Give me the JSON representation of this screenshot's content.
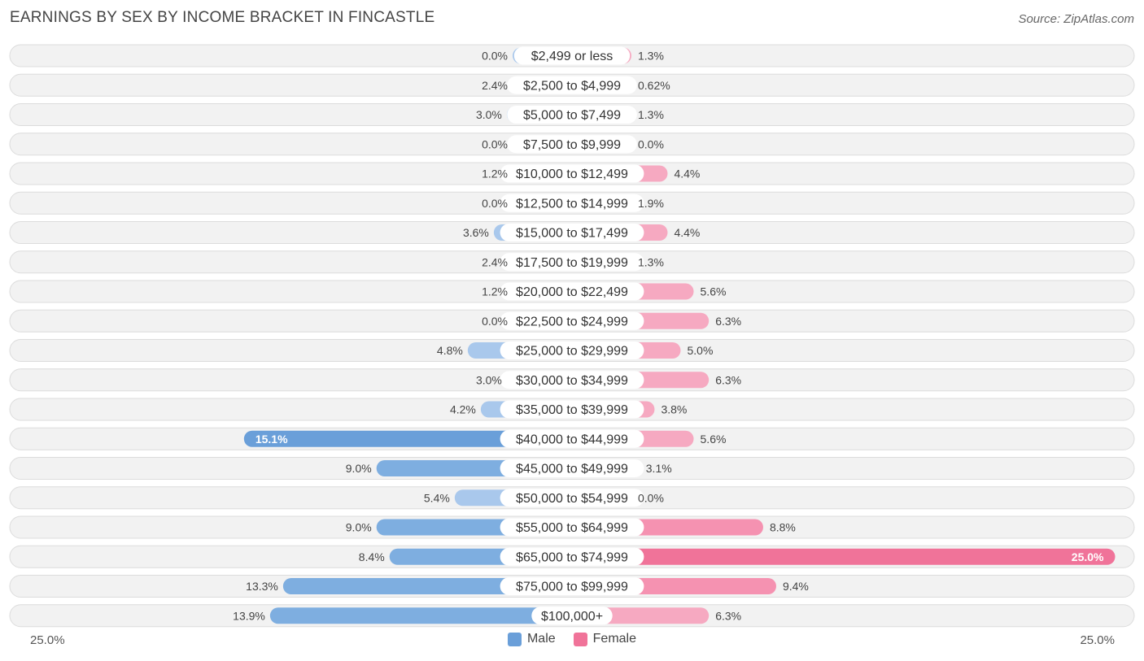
{
  "title": "EARNINGS BY SEX BY INCOME BRACKET IN FINCASTLE",
  "source": "Source: ZipAtlas.com",
  "colors": {
    "male": "#6a9fd9",
    "male_light": "#a9c8ec",
    "female": "#f07399",
    "female_light": "#f6a9c1",
    "row_bg": "#f2f2f2",
    "row_border": "#dcdcdc"
  },
  "legend": {
    "male_label": "Male",
    "female_label": "Female"
  },
  "axis": {
    "left_label": "25.0%",
    "right_label": "25.0%"
  },
  "chart_data": {
    "type": "bar",
    "orientation": "horizontal-diverging",
    "title": "EARNINGS BY SEX BY INCOME BRACKET IN FINCASTLE",
    "xlim": [
      -25,
      25
    ],
    "categories": [
      "$2,499 or less",
      "$2,500 to $4,999",
      "$5,000 to $7,499",
      "$7,500 to $9,999",
      "$10,000 to $12,499",
      "$12,500 to $14,999",
      "$15,000 to $17,499",
      "$17,500 to $19,999",
      "$20,000 to $22,499",
      "$22,500 to $24,999",
      "$25,000 to $29,999",
      "$30,000 to $34,999",
      "$35,000 to $39,999",
      "$40,000 to $44,999",
      "$45,000 to $49,999",
      "$50,000 to $54,999",
      "$55,000 to $64,999",
      "$65,000 to $74,999",
      "$75,000 to $99,999",
      "$100,000+"
    ],
    "series": [
      {
        "name": "Male",
        "values": [
          0.0,
          2.4,
          3.0,
          0.0,
          1.2,
          0.0,
          3.6,
          2.4,
          1.2,
          0.0,
          4.8,
          3.0,
          4.2,
          15.1,
          9.0,
          5.4,
          9.0,
          8.4,
          13.3,
          13.9
        ],
        "labels": [
          "0.0%",
          "2.4%",
          "3.0%",
          "0.0%",
          "1.2%",
          "0.0%",
          "3.6%",
          "2.4%",
          "1.2%",
          "0.0%",
          "4.8%",
          "3.0%",
          "4.2%",
          "15.1%",
          "9.0%",
          "5.4%",
          "9.0%",
          "8.4%",
          "13.3%",
          "13.9%"
        ]
      },
      {
        "name": "Female",
        "values": [
          1.3,
          0.62,
          1.3,
          0.0,
          4.4,
          1.9,
          4.4,
          1.3,
          5.6,
          6.3,
          5.0,
          6.3,
          3.8,
          5.6,
          3.1,
          0.0,
          8.8,
          25.0,
          9.4,
          6.3
        ],
        "labels": [
          "1.3%",
          "0.62%",
          "1.3%",
          "0.0%",
          "4.4%",
          "1.9%",
          "4.4%",
          "1.3%",
          "5.6%",
          "6.3%",
          "5.0%",
          "6.3%",
          "3.8%",
          "5.6%",
          "3.1%",
          "0.0%",
          "8.8%",
          "25.0%",
          "9.4%",
          "6.3%"
        ]
      }
    ]
  }
}
